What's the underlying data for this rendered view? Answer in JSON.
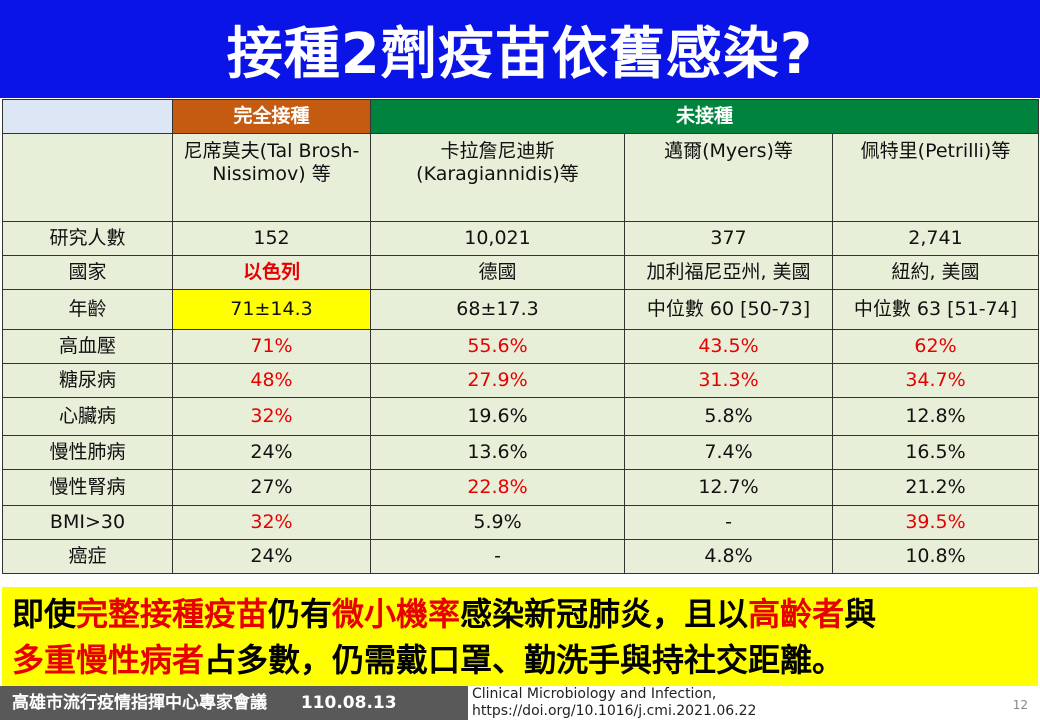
{
  "slide": {
    "title": "接種2劑疫苗依舊感染?",
    "page_number": "12"
  },
  "table": {
    "group_headers": {
      "vaccinated": "完全接種",
      "unvaccinated": "未接種"
    },
    "study_headers": [
      "尼席莫夫(Tal Brosh-Nissimov) 等",
      "卡拉詹尼迪斯 (Karagiannidis)等",
      "邁爾(Myers)等",
      "佩特里(Petrilli)等"
    ],
    "rows": [
      {
        "label": "研究人數",
        "values": [
          "152",
          "10,021",
          "377",
          "2,741"
        ]
      },
      {
        "label": "國家",
        "values": [
          "以色列",
          "德國",
          "加利福尼亞州, 美國",
          "紐約, 美國"
        ]
      },
      {
        "label": "年齡",
        "values": [
          "71±14.3",
          "68±17.3",
          "中位數 60 [50-73]",
          "中位數 63 [51-74]"
        ]
      },
      {
        "label": "高血壓",
        "values": [
          "71%",
          "55.6%",
          "43.5%",
          "62%"
        ]
      },
      {
        "label": "糖尿病",
        "values": [
          "48%",
          "27.9%",
          "31.3%",
          "34.7%"
        ]
      },
      {
        "label": "心臟病",
        "values": [
          "32%",
          "19.6%",
          "5.8%",
          "12.8%"
        ]
      },
      {
        "label": "慢性肺病",
        "values": [
          "24%",
          "13.6%",
          "7.4%",
          "16.5%"
        ]
      },
      {
        "label": "慢性腎病",
        "values": [
          "27%",
          "22.8%",
          "12.7%",
          "21.2%"
        ]
      },
      {
        "label": "BMI>30",
        "values": [
          "32%",
          "5.9%",
          "-",
          "39.5%"
        ]
      },
      {
        "label": "癌症",
        "values": [
          "24%",
          "-",
          "4.8%",
          "10.8%"
        ]
      }
    ]
  },
  "note": {
    "p1": "即使",
    "p2": "完整接種疫苗",
    "p3": "仍有",
    "p4": "微小機率",
    "p5": "感染新冠肺炎，且以",
    "p6": "高齡者",
    "p7": "與",
    "p8": "多重慢性病者",
    "p9": "占多數，仍需戴口罩、勤洗手與持社交距離。"
  },
  "footer": {
    "org": "高雄市流行疫情指揮中心專家會議",
    "date": "110.08.13",
    "source_line1": "Clinical Microbiology and Infection,",
    "source_line2": "https://doi.org/10.1016/j.cmi.2021.06.22"
  },
  "colors": {
    "title_bg": "#0a14e6",
    "vaccinated_header": "#c55a11",
    "unvaccinated_header": "#00843d",
    "vaccinated_cell": "#f8caac",
    "unvaccinated_cell": "#e8efd9",
    "highlight": "#ffff00",
    "emphasis_text": "#e80000"
  }
}
